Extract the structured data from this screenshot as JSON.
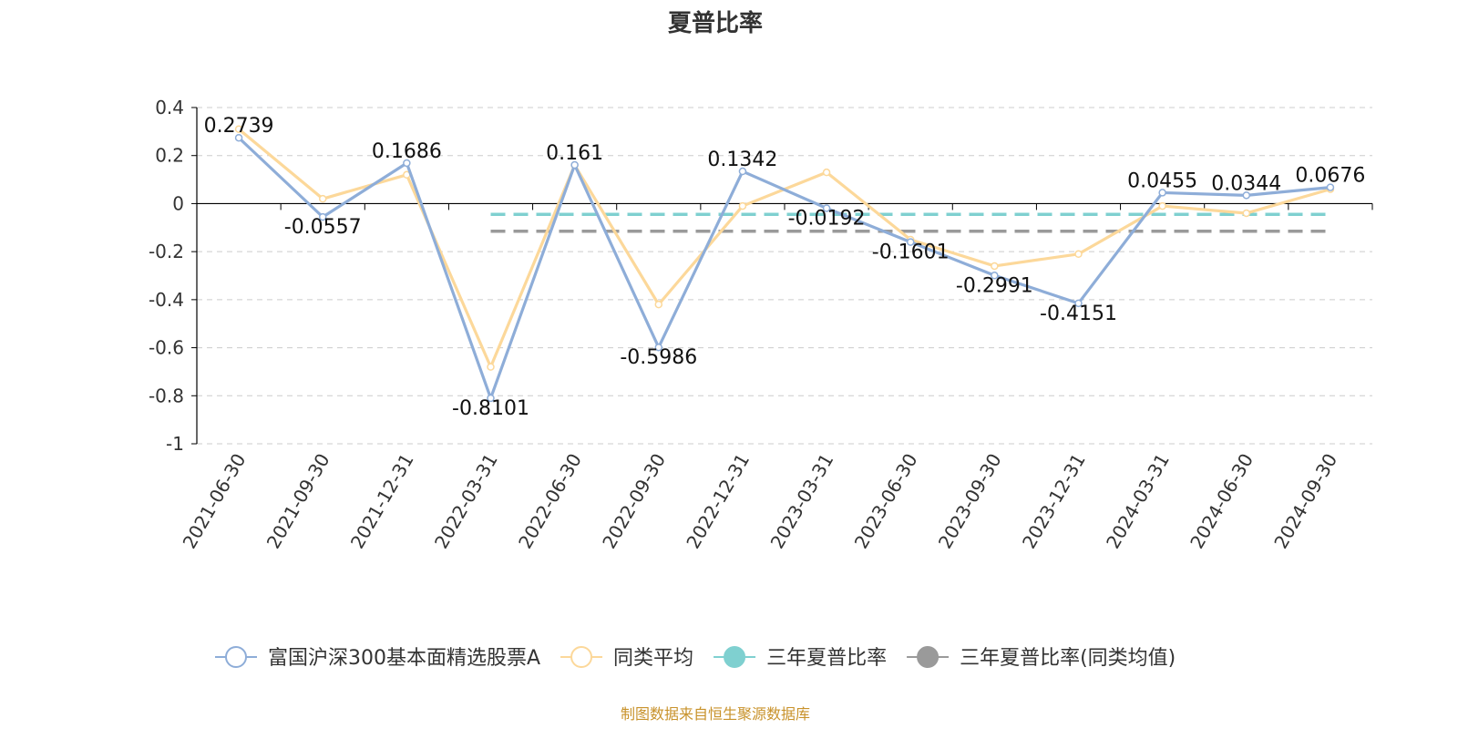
{
  "source_note": "制图数据来自恒生聚源数据库",
  "colors": {
    "fund": "#8eadd8",
    "peer": "#fcd89a",
    "three_year": "#7fd0d0",
    "three_year_peer": "#9a9a9a",
    "grid": "#cccccc",
    "axis": "#000000",
    "source": "#c8922b"
  },
  "chart_data": {
    "type": "line",
    "title": "夏普比率",
    "xlabel": "",
    "ylabel": "",
    "ylim": [
      -1,
      0.4
    ],
    "yticks": [
      0.4,
      0.2,
      0,
      -0.2,
      -0.4,
      -0.6,
      -0.8,
      -1
    ],
    "ytick_labels": [
      "0.4",
      "0.2",
      "0",
      "-0.2",
      "-0.4",
      "-0.6",
      "-0.8",
      "-1"
    ],
    "grid": true,
    "legend_position": "bottom",
    "categories": [
      "2021-06-30",
      "2021-09-30",
      "2021-12-31",
      "2022-03-31",
      "2022-06-30",
      "2022-09-30",
      "2022-12-31",
      "2023-03-31",
      "2023-06-30",
      "2023-09-30",
      "2023-12-31",
      "2024-03-31",
      "2024-06-30",
      "2024-09-30"
    ],
    "series": [
      {
        "name": "富国沪深300基本面精选股票A",
        "values": [
          0.2739,
          -0.0557,
          0.1686,
          -0.8101,
          0.161,
          -0.5986,
          0.1342,
          -0.0192,
          -0.1601,
          -0.2991,
          -0.4151,
          0.0455,
          0.0344,
          0.0676
        ],
        "labels": [
          "0.2739",
          "-0.0557",
          "0.1686",
          "-0.8101",
          "0.161",
          "-0.5986",
          "0.1342",
          "-0.0192",
          "-0.1601",
          "-0.2991",
          "-0.4151",
          "0.0455",
          "0.0344",
          "0.0676"
        ]
      },
      {
        "name": "同类平均",
        "values": [
          0.31,
          0.02,
          0.12,
          -0.68,
          0.16,
          -0.42,
          -0.01,
          0.13,
          -0.15,
          -0.26,
          -0.21,
          -0.01,
          -0.04,
          0.06
        ]
      },
      {
        "name": "三年夏普比率",
        "type": "reference",
        "value": -0.045,
        "x_range": [
          "2022-03-31",
          "2024-09-30"
        ]
      },
      {
        "name": "三年夏普比率(同类均值)",
        "type": "reference",
        "value": -0.115,
        "x_range": [
          "2022-03-31",
          "2024-09-30"
        ]
      }
    ]
  }
}
